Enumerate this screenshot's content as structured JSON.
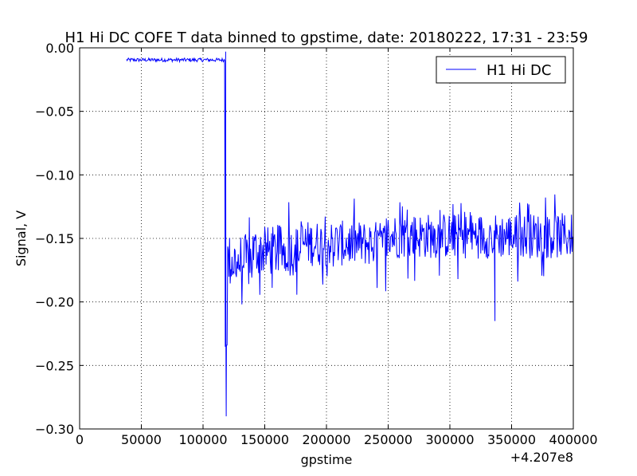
{
  "chart_data": {
    "type": "line",
    "title": "H1 Hi DC COFE T data binned to gpstime, date: 20180222, 17:31 - 23:59",
    "xlabel": "gpstime",
    "ylabel": "Signal, V",
    "x_offset_label": "+4.207e8",
    "xlim": [
      0,
      400000
    ],
    "ylim": [
      -0.3,
      0.0
    ],
    "xticks": [
      0,
      50000,
      100000,
      150000,
      200000,
      250000,
      300000,
      350000,
      400000
    ],
    "xtick_labels": [
      "0",
      "50000",
      "100000",
      "150000",
      "200000",
      "250000",
      "300000",
      "350000",
      "400000"
    ],
    "yticks": [
      -0.3,
      -0.25,
      -0.2,
      -0.15,
      -0.1,
      -0.05,
      0.0
    ],
    "ytick_labels": [
      "−0.30",
      "−0.25",
      "−0.20",
      "−0.15",
      "−0.10",
      "−0.05",
      "0.00"
    ],
    "grid": true,
    "legend_position": "top-right",
    "series": [
      {
        "name": "H1 Hi DC",
        "color": "#0000ff",
        "segments": [
          {
            "x_start": 38000,
            "x_end": 118000,
            "y_center": -0.0095,
            "y_spread": 0.0008
          },
          {
            "x_start": 118000,
            "x_end": 120000,
            "y_center": -0.215,
            "y_spread": 0.014
          },
          {
            "x_start": 120000,
            "x_end": 140000,
            "y_center": -0.168,
            "y_spread": 0.012
          },
          {
            "x_start": 140000,
            "x_end": 180000,
            "y_center": -0.16,
            "y_spread": 0.011
          },
          {
            "x_start": 180000,
            "x_end": 250000,
            "y_center": -0.154,
            "y_spread": 0.01
          },
          {
            "x_start": 250000,
            "x_end": 400000,
            "y_center": -0.148,
            "y_spread": 0.01
          }
        ],
        "spikes": [
          {
            "x": 118800,
            "y": -0.29
          },
          {
            "x": 118300,
            "y": -0.003
          },
          {
            "x": 336500,
            "y": -0.215
          }
        ]
      }
    ]
  }
}
